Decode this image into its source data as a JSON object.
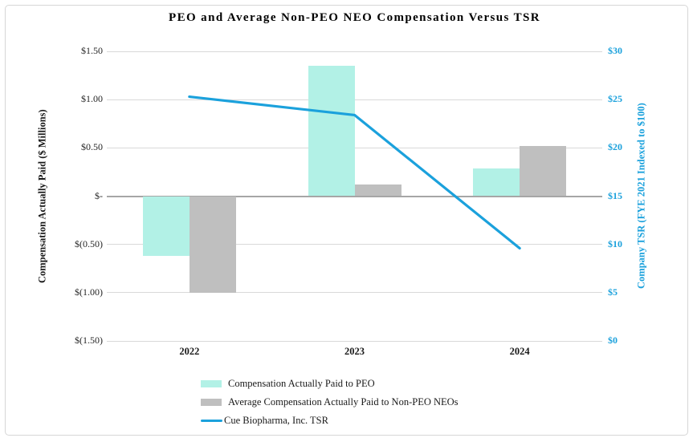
{
  "chart_data": {
    "type": "combo-bar-line",
    "title": "PEO and Average Non-PEO NEO Compensation Versus TSR",
    "categories": [
      "2022",
      "2023",
      "2024"
    ],
    "series": [
      {
        "id": "peo",
        "name": "Compensation Actually Paid to PEO",
        "type": "bar",
        "axis": "left",
        "color": "#b2f1e6",
        "values": [
          -0.62,
          1.35,
          0.29
        ]
      },
      {
        "id": "non-peo-neo",
        "name": "Average Compensation Actually Paid to Non-PEO NEOs",
        "type": "bar",
        "axis": "left",
        "color": "#bfbfbf",
        "values": [
          -1.0,
          0.12,
          0.52
        ]
      },
      {
        "id": "tsr",
        "name": "Cue Biopharma, Inc. TSR",
        "type": "line",
        "axis": "right",
        "color": "#1ba1dc",
        "values": [
          25.3,
          23.4,
          9.6
        ]
      }
    ],
    "left_axis": {
      "label": "Compensation Actually Paid ($ Millions)",
      "ticks": [
        "$1.50",
        "$1.00",
        "$0.50",
        "$-",
        "$(0.50)",
        "$(1.00)",
        "$(1.50)"
      ],
      "max": 1.5,
      "min": -1.5
    },
    "right_axis": {
      "label": "Company TSR (FYE 2021 Indexed to $100)",
      "ticks": [
        "$30",
        "$25",
        "$20",
        "$15",
        "$10",
        "$5",
        "$0"
      ],
      "max": 30,
      "min": 0
    },
    "legend_position": "bottom",
    "grid": true
  },
  "colors": {
    "gridline": "#d9d9d9",
    "zero_axis_line": "#a6a6a6",
    "left_tick_text": "#262626",
    "right_tick_text": "#1ba1dc",
    "frame_border": "#d6d6d6"
  }
}
